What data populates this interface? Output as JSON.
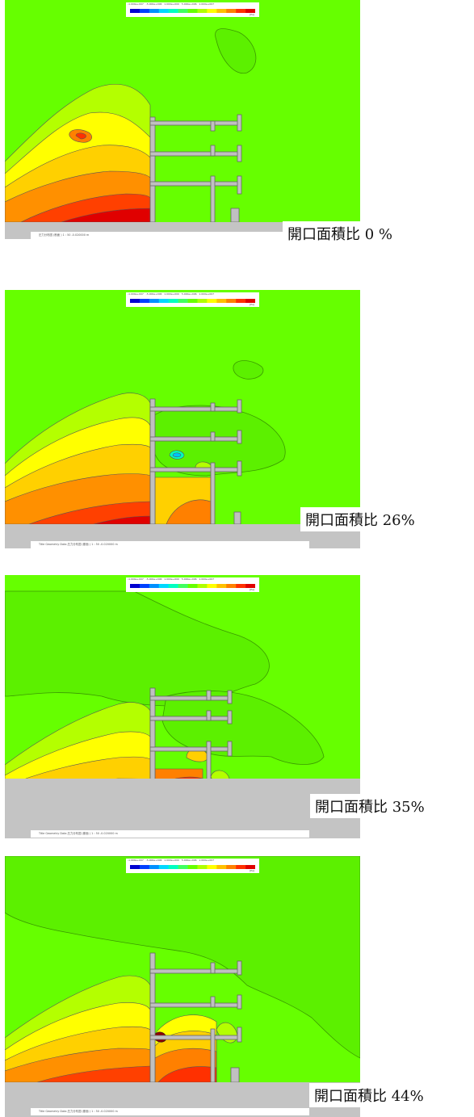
{
  "legend": {
    "ticks": [
      "-1.000e+007",
      "-5.000e+006",
      "1.000e+000",
      "5.000e+006",
      "1.000e+007"
    ],
    "unit": "[Pa]",
    "colors": [
      "#0000d0",
      "#0040ff",
      "#0090ff",
      "#00d8ff",
      "#00ffc0",
      "#40ff60",
      "#66ff00",
      "#b0ff00",
      "#ffff00",
      "#ffc000",
      "#ff8000",
      "#ff3000",
      "#e00000"
    ]
  },
  "panels": [
    {
      "caption": "開口面積比 0 %",
      "footer": "圧力分布図 (断面 ) 1 : 50  -0.020000 m"
    },
    {
      "caption": "開口面積比 26%",
      "footer": "Title Geometry Data  圧力分布図 (断面 ) 1 : 50  -0.020000 m"
    },
    {
      "caption": "開口面積比 35%",
      "footer": "Title Geometry Data  圧力分布図 (断面 ) 1 : 50  -0.020000 m"
    },
    {
      "caption": "開口面積比 44%",
      "footer": "Title Geometry Data  圧力分布図 (断面 ) 1 : 50  -0.020000 m"
    }
  ],
  "colors": {
    "background_field": "#66ff00",
    "ground": "#c4c4c4",
    "structure": "#c0c0c0"
  }
}
